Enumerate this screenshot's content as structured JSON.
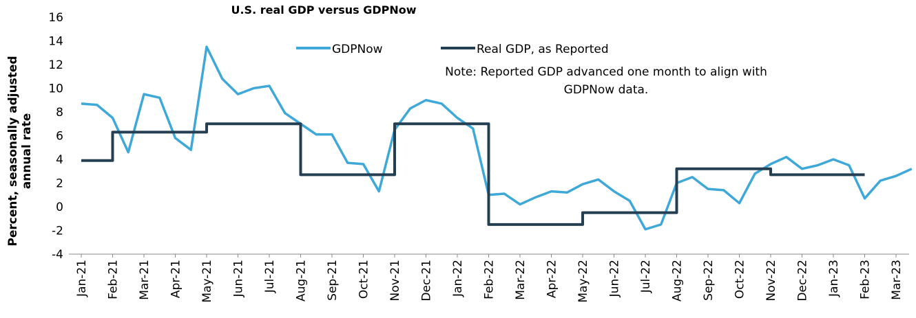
{
  "chart_data": {
    "type": "line",
    "title": "U.S. real GDP versus GDPNow",
    "y_label": [
      "Percent, seasonally adjusted",
      "annual rate"
    ],
    "note": [
      "Note: Reported GDP advanced one month to align with",
      "GDPNow data."
    ],
    "categories": [
      "Jan-21",
      null,
      "Feb-21",
      null,
      "Mar-21",
      null,
      "Apr-21",
      null,
      "May-21",
      null,
      "Jun-21",
      null,
      "Jul-21",
      null,
      "Aug-21",
      null,
      "Sep-21",
      null,
      "Oct-21",
      null,
      "Nov-21",
      null,
      "Dec-21",
      null,
      "Jan-22",
      null,
      "Feb-22",
      null,
      "Mar-22",
      null,
      "Apr-22",
      null,
      "May-22",
      null,
      "Jun-22",
      null,
      "Jul-22",
      null,
      "Aug-22",
      null,
      "Sep-22",
      null,
      "Oct-22",
      null,
      "Nov-22",
      null,
      "Dec-22",
      null,
      "Jan-23",
      null,
      "Feb-23",
      null,
      "Mar-23",
      null
    ],
    "series": [
      {
        "name": "GDPNow",
        "color": "#3ea8d8",
        "step": false,
        "values": [
          8.7,
          8.6,
          7.5,
          4.6,
          9.5,
          9.2,
          5.8,
          4.8,
          13.5,
          10.8,
          9.5,
          10.0,
          10.2,
          7.9,
          7.0,
          6.1,
          6.1,
          3.7,
          3.6,
          1.3,
          6.5,
          8.3,
          9.0,
          8.7,
          7.5,
          6.6,
          1.0,
          1.1,
          0.2,
          0.8,
          1.3,
          1.2,
          1.9,
          2.3,
          1.3,
          0.5,
          -1.9,
          -1.5,
          2.0,
          2.5,
          1.5,
          1.4,
          0.3,
          2.8,
          3.6,
          4.2,
          3.2,
          3.5,
          4.0,
          3.5,
          0.7,
          2.2,
          2.6,
          3.2
        ]
      },
      {
        "name": "Real GDP, as Reported",
        "color": "#243f52",
        "step": true,
        "values": [
          3.9,
          3.9,
          6.3,
          6.3,
          6.3,
          6.3,
          6.3,
          6.3,
          7.0,
          7.0,
          7.0,
          7.0,
          7.0,
          7.0,
          2.7,
          2.7,
          2.7,
          2.7,
          2.7,
          2.7,
          7.0,
          7.0,
          7.0,
          7.0,
          7.0,
          7.0,
          -1.5,
          -1.5,
          -1.5,
          -1.5,
          -1.5,
          -1.5,
          -0.5,
          -0.5,
          -0.5,
          -0.5,
          -0.5,
          -0.5,
          3.2,
          3.2,
          3.2,
          3.2,
          3.2,
          3.2,
          2.7,
          2.7,
          2.7,
          2.7,
          2.7,
          2.7,
          2.7,
          null,
          null,
          null
        ]
      }
    ],
    "ylim": [
      -4,
      16
    ],
    "yticks": [
      -4,
      -2,
      0,
      2,
      4,
      6,
      8,
      10,
      12,
      14,
      16
    ],
    "grid": false
  }
}
